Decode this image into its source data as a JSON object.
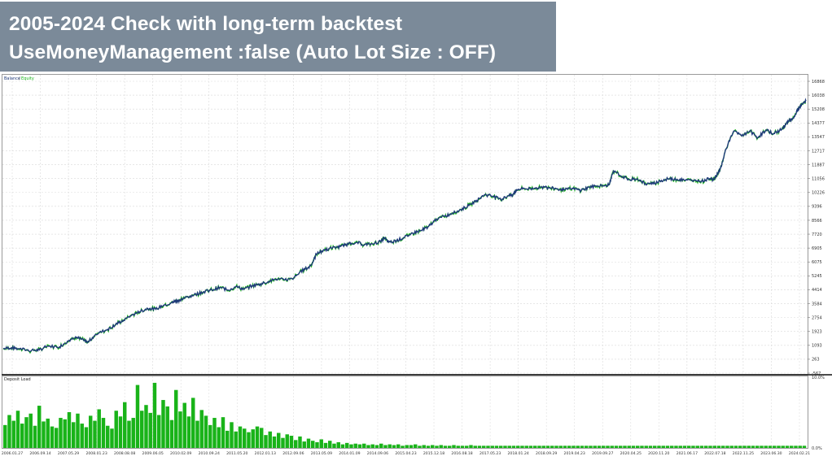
{
  "banner": {
    "line1": "2005-2024 Check with long-term backtest",
    "line2": "UseMoneyManagement :false (Auto Lot Size : OFF)"
  },
  "colors": {
    "balance": "#1f3a7a",
    "equity": "#19b319",
    "deposit_load": "#19b319",
    "banner_bg": "#7b8a99",
    "grid": "#d6d6d6"
  },
  "chart_data": [
    {
      "type": "line",
      "legend": [
        "Balance",
        "Equity"
      ],
      "legend_position": "top-left",
      "grid": true,
      "y_ticks": [
        "16868",
        "16038",
        "15208",
        "14377",
        "13547",
        "12717",
        "11887",
        "11056",
        "10226",
        "9396",
        "8566",
        "7720",
        "6905",
        "6075",
        "5245",
        "4414",
        "3584",
        "2754",
        "1923",
        "1093",
        "263",
        "-567"
      ],
      "ylim": [
        -567,
        16868
      ],
      "x_ticks": [
        "2006.01.27",
        "2006.09.14",
        "2007.05.29",
        "2008.01.23",
        "2008.08.08",
        "2009.06.05",
        "2010.02.09",
        "2010.09.24",
        "2011.05.20",
        "2012.01.13",
        "2012.09.06",
        "2013.05.09",
        "2014.01.09",
        "2014.09.06",
        "2015.04.23",
        "2015.12.18",
        "2016.08.18",
        "2017.05.23",
        "2018.01.24",
        "2018.09.29",
        "2019.04.23",
        "2019.09.27",
        "2020.04.25",
        "2020.11.20",
        "2021.06.17",
        "2022.07.18",
        "2022.11.25",
        "2023.06.30",
        "2024.02.21"
      ],
      "series": [
        {
          "name": "Balance",
          "x": [
            0,
            0.01,
            0.02,
            0.035,
            0.045,
            0.055,
            0.07,
            0.08,
            0.09,
            0.1,
            0.105,
            0.115,
            0.13,
            0.14,
            0.15,
            0.16,
            0.17,
            0.18,
            0.19,
            0.2,
            0.21,
            0.215,
            0.22,
            0.23,
            0.24,
            0.25,
            0.26,
            0.27,
            0.28,
            0.29,
            0.3,
            0.31,
            0.32,
            0.33,
            0.34,
            0.35,
            0.36,
            0.37,
            0.38,
            0.385,
            0.39,
            0.4,
            0.41,
            0.42,
            0.43,
            0.44,
            0.45,
            0.46,
            0.47,
            0.475,
            0.48,
            0.49,
            0.5,
            0.51,
            0.52,
            0.53,
            0.54,
            0.55,
            0.56,
            0.57,
            0.58,
            0.59,
            0.6,
            0.61,
            0.62,
            0.63,
            0.635,
            0.64,
            0.65,
            0.66,
            0.67,
            0.68,
            0.69,
            0.7,
            0.71,
            0.72,
            0.73,
            0.74,
            0.75,
            0.755,
            0.76,
            0.77,
            0.78,
            0.79,
            0.8,
            0.81,
            0.82,
            0.83,
            0.84,
            0.85,
            0.86,
            0.87,
            0.88,
            0.885,
            0.89,
            0.895,
            0.9,
            0.91,
            0.92,
            0.93,
            0.94,
            0.95,
            0.96,
            0.97,
            0.975,
            0.98,
            0.985,
            0.99,
            0.995,
            1
          ],
          "values": [
            900,
            950,
            880,
            780,
            820,
            1050,
            1000,
            1350,
            1600,
            1400,
            1250,
            1750,
            2050,
            2350,
            2600,
            2900,
            3100,
            3300,
            3250,
            3500,
            3650,
            3750,
            3800,
            4000,
            4150,
            4300,
            4400,
            4550,
            4400,
            4600,
            4450,
            4650,
            4750,
            4900,
            5050,
            5000,
            5050,
            5500,
            5750,
            6000,
            6550,
            6800,
            6900,
            7000,
            7150,
            7250,
            7100,
            7150,
            7300,
            7500,
            7250,
            7350,
            7550,
            7800,
            7950,
            8200,
            8650,
            8800,
            9000,
            9200,
            9450,
            9750,
            10100,
            10000,
            9800,
            10050,
            10100,
            10400,
            10450,
            10450,
            10550,
            10500,
            10450,
            10400,
            10450,
            10350,
            10550,
            10600,
            10650,
            10700,
            11500,
            11200,
            11000,
            11050,
            10750,
            10750,
            10950,
            11050,
            11000,
            10950,
            10950,
            10900,
            11050,
            11000,
            11350,
            11850,
            12800,
            13900,
            13600,
            13900,
            13500,
            13950,
            13750,
            14000,
            14300,
            14550,
            14700,
            15200,
            15500,
            15700
          ]
        }
      ]
    },
    {
      "type": "bar",
      "title": "Deposit Load",
      "y_ticks": [
        "10.0%",
        "0.0%"
      ],
      "ylim": [
        0,
        10
      ],
      "values_pct": [
        3.2,
        4.6,
        3.8,
        5.2,
        3.4,
        4.3,
        4.8,
        3.1,
        5.9,
        3.7,
        4.1,
        3.0,
        2.8,
        4.2,
        4.0,
        5.0,
        3.6,
        4.8,
        3.4,
        2.9,
        4.5,
        3.8,
        5.4,
        4.2,
        3.1,
        2.7,
        5.2,
        4.4,
        6.4,
        3.8,
        4.2,
        8.8,
        5.2,
        6.0,
        4.9,
        9.1,
        4.6,
        6.7,
        5.8,
        3.9,
        8.1,
        5.1,
        6.3,
        4.4,
        7.0,
        3.8,
        5.3,
        4.5,
        3.2,
        4.2,
        2.9,
        4.3,
        2.4,
        3.6,
        2.3,
        3.0,
        2.7,
        2.2,
        2.6,
        3.0,
        2.8,
        1.8,
        2.3,
        1.6,
        2.1,
        1.4,
        1.9,
        1.7,
        1.1,
        1.6,
        0.9,
        1.3,
        1.0,
        0.8,
        1.2,
        0.7,
        1.0,
        0.6,
        0.8,
        0.5,
        0.7,
        0.5,
        0.6,
        0.5,
        0.6,
        0.4,
        0.5,
        0.4,
        0.6,
        0.4,
        0.5,
        0.4,
        0.5,
        0.3,
        0.4,
        0.4,
        0.5,
        0.3,
        0.4,
        0.3,
        0.4,
        0.3,
        0.4,
        0.3,
        0.3,
        0.4,
        0.3,
        0.3,
        0.3,
        0.4,
        0.3,
        0.3,
        0.3,
        0.3,
        0.3,
        0.3,
        0.3,
        0.3,
        0.3,
        0.3,
        0.3,
        0.3,
        0.3,
        0.3,
        0.3,
        0.3,
        0.3,
        0.3,
        0.3,
        0.3,
        0.3,
        0.3,
        0.3,
        0.3,
        0.3,
        0.3,
        0.3,
        0.3,
        0.3,
        0.3,
        0.3,
        0.3,
        0.3,
        0.3,
        0.3,
        0.3,
        0.3,
        0.3,
        0.3,
        0.3,
        0.3,
        0.3,
        0.3,
        0.3,
        0.3,
        0.3,
        0.3,
        0.3,
        0.3,
        0.3,
        0.3,
        0.3,
        0.3,
        0.3,
        0.3,
        0.3,
        0.3,
        0.3,
        0.3,
        0.3,
        0.3,
        0.3,
        0.3,
        0.3,
        0.3,
        0.3,
        0.3,
        0.3,
        0.3,
        0.3,
        0.3,
        0.3,
        0.3,
        0.3,
        0.3,
        0.3,
        0.3,
        0.3
      ]
    }
  ]
}
